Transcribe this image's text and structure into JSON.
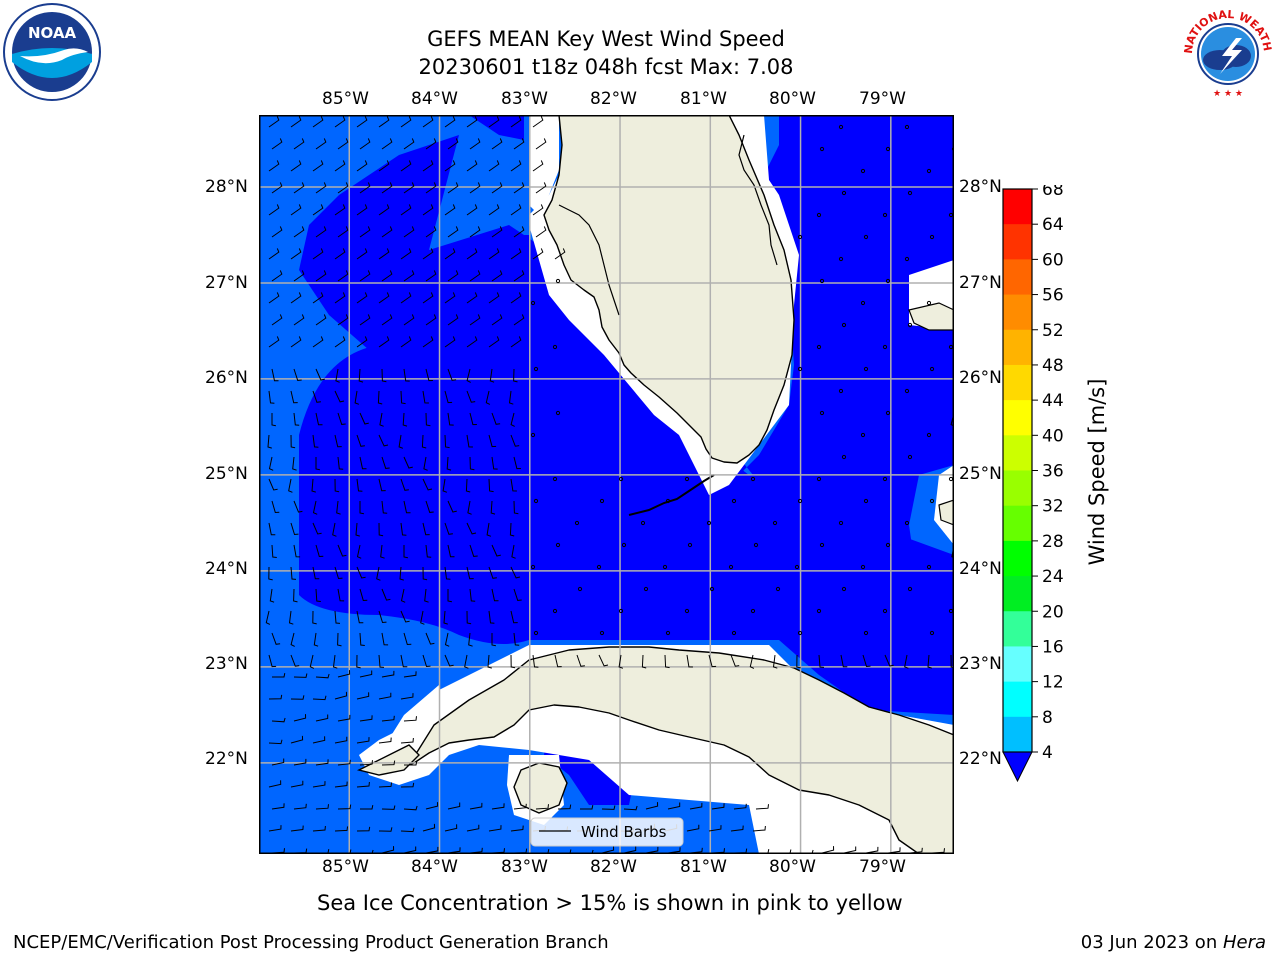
{
  "title": {
    "line1": "GEFS MEAN Key West Wind Speed",
    "line2": "20230601 t18z 048h fcst   Max: 7.08"
  },
  "logos": {
    "left": {
      "icon": "noaa-logo-icon",
      "text": "NOAA"
    },
    "right": {
      "icon": "nws-logo-icon",
      "text": "NATIONAL WEATHER SERVICE"
    }
  },
  "map": {
    "lon_ticks": [
      "85°W",
      "84°W",
      "83°W",
      "82°W",
      "81°W",
      "80°W",
      "79°W"
    ],
    "lat_ticks": [
      "28°N",
      "27°N",
      "26°N",
      "25°N",
      "24°N",
      "23°N",
      "22°N"
    ],
    "lon_range": [
      -86,
      -78.3
    ],
    "lat_range": [
      21.05,
      28.75
    ],
    "grid": true,
    "legend": {
      "label": "Wind Barbs",
      "placement": "bottom-center"
    }
  },
  "colorbar": {
    "label": "Wind Speed [m/s]",
    "ticks": [
      "68",
      "64",
      "60",
      "56",
      "52",
      "48",
      "44",
      "40",
      "36",
      "32",
      "28",
      "24",
      "20",
      "16",
      "12",
      "8",
      "4"
    ],
    "colors": [
      "#ff0000",
      "#ff3300",
      "#ff6600",
      "#ff8c00",
      "#ffb300",
      "#ffd900",
      "#ffff00",
      "#ccff00",
      "#99ff00",
      "#66ff00",
      "#00ff00",
      "#00ee22",
      "#33ff99",
      "#66ffff",
      "#00ffff",
      "#00bfff",
      "#0066ff"
    ],
    "under_color": "#0000ff"
  },
  "fill_colors": {
    "level1": "#0066ff",
    "level0": "#0000ff",
    "land": "#eeeedd",
    "grid": "#b0b0b0"
  },
  "caption": "Sea Ice Concentration > 15% is shown in pink to yellow",
  "footer": {
    "left": "NCEP/EMC/Verification Post Processing Product Generation Branch",
    "date": "03 Jun 2023 on ",
    "host": "Hera"
  }
}
